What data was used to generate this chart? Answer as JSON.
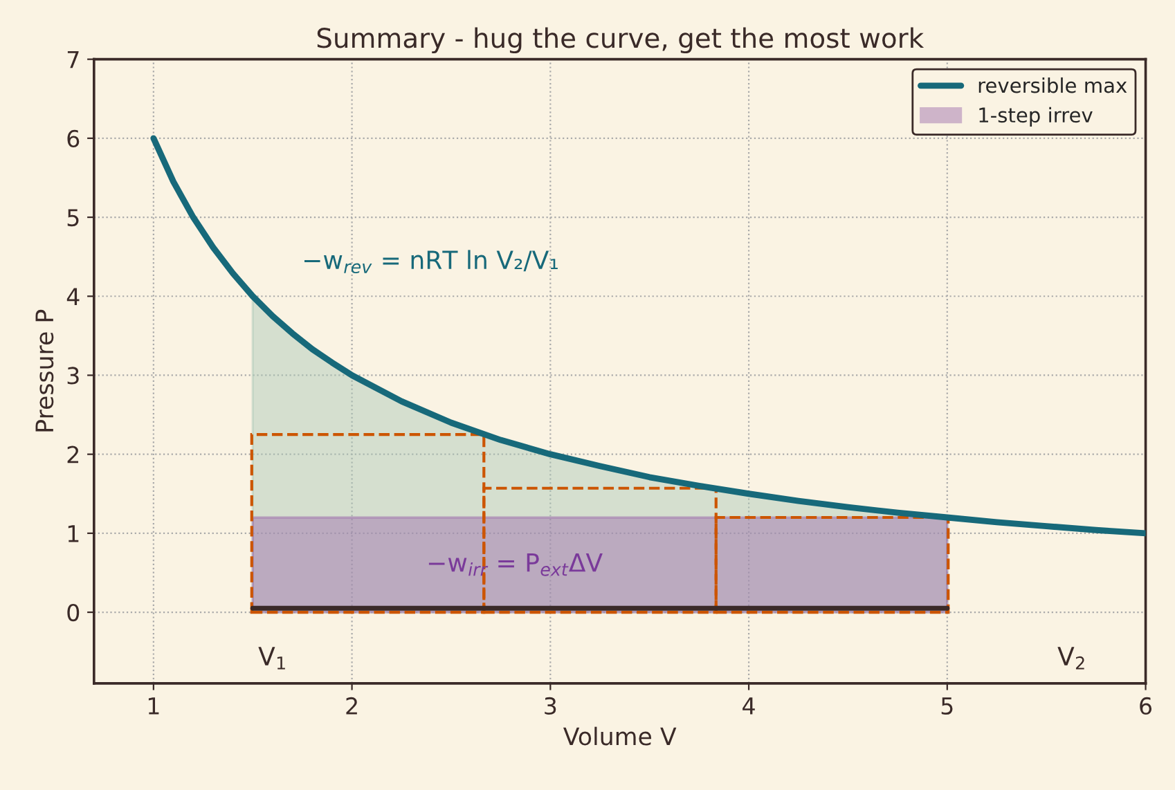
{
  "chart_data": {
    "type": "line",
    "title": "Summary - hug the curve, get the most work",
    "xlabel": "Volume V",
    "ylabel": "Pressure P",
    "xlim": [
      0.7,
      6
    ],
    "ylim": [
      -0.9,
      7
    ],
    "xticks": [
      1,
      2,
      3,
      4,
      5,
      6
    ],
    "yticks": [
      0,
      1,
      2,
      3,
      4,
      5,
      6,
      7
    ],
    "grid": true,
    "legend": "top right",
    "series": [
      {
        "name": "reversible max",
        "line_style": "solid",
        "color": "#17697a",
        "x": [
          1,
          1.1,
          1.2,
          1.3,
          1.4,
          1.5,
          1.6,
          1.7,
          1.8,
          1.9,
          2,
          2.25,
          2.5,
          2.75,
          3,
          3.25,
          3.5,
          3.75,
          4,
          4.25,
          4.5,
          4.75,
          5,
          5.25,
          5.5,
          5.75,
          6
        ],
        "values": [
          6,
          5.45,
          5,
          4.62,
          4.29,
          4,
          3.75,
          3.53,
          3.33,
          3.16,
          3,
          2.67,
          2.4,
          2.18,
          2,
          1.85,
          1.71,
          1.6,
          1.5,
          1.41,
          1.33,
          1.26,
          1.2,
          1.14,
          1.09,
          1.04,
          1
        ]
      },
      {
        "type": "area",
        "color": "#a9c7b5",
        "x": [
          1.5,
          1.6,
          1.7,
          1.8,
          1.9,
          2,
          2.25,
          2.5,
          2.75,
          3,
          3.25,
          3.5,
          3.75,
          4,
          4.25,
          4.5,
          4.75,
          5
        ],
        "values": [
          4,
          3.75,
          3.53,
          3.33,
          3.16,
          3,
          2.67,
          2.4,
          2.18,
          2,
          1.85,
          1.71,
          1.6,
          1.5,
          1.41,
          1.33,
          1.26,
          1.2
        ]
      },
      {
        "type": "area",
        "name": "1-step irrev",
        "color": "#9b6aab",
        "x": [
          1.5,
          5
        ],
        "values": [
          1.2,
          1.2
        ]
      },
      {
        "type": "bar",
        "line_style": "dashed",
        "color": "#cc5500",
        "x": [
          2.08,
          3.25,
          4.42
        ],
        "values": [
          2.25,
          1.57,
          1.2
        ]
      },
      {
        "type": "line",
        "line_style": "solid",
        "color": "#3a2a28",
        "x": [
          1.5,
          5
        ],
        "values": [
          0.05,
          0.05
        ]
      }
    ],
    "annotations": [
      "−w$_{rev}$ = nRT ln V₂/V₁",
      "−w$_{irr}$ = P$_{ext}$ΔV",
      "V$_{1}$",
      "V$_{2}$"
    ]
  }
}
